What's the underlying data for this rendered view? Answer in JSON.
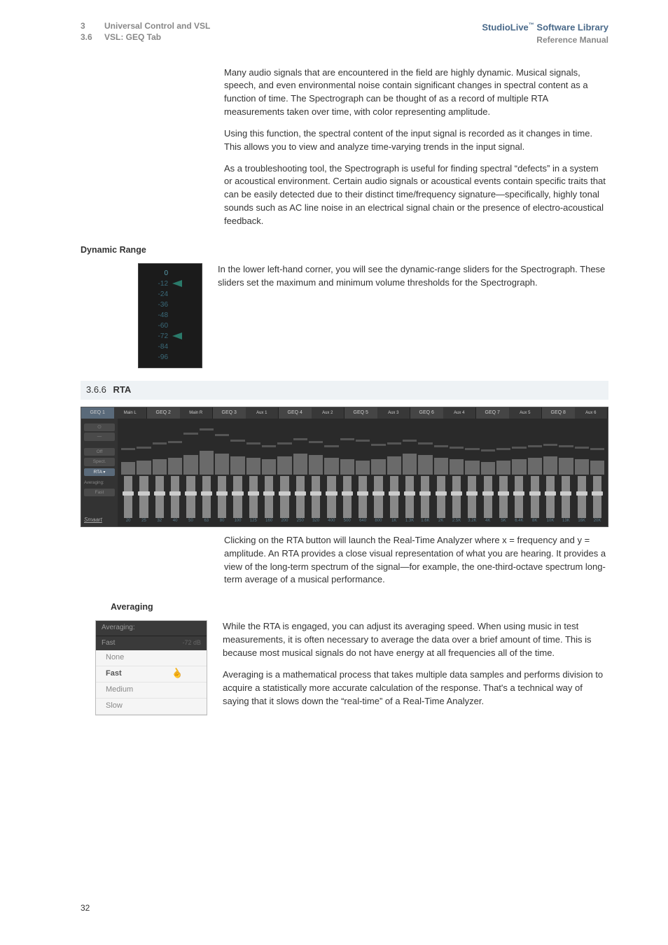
{
  "header": {
    "chapNum": "3",
    "chapTitle": "Universal Control and VSL",
    "secNum": "3.6",
    "secTitle": "VSL: GEQ Tab",
    "right1a": "StudioLive",
    "right1b": " Software Library",
    "right2": "Reference Manual"
  },
  "p1": "Many audio signals that are encountered in the field are highly dynamic. Musical signals, speech, and even environmental noise contain significant changes in spectral content as a function of time. The Spectrograph can be thought of as a record of multiple RTA measurements taken over time, with color representing amplitude.",
  "p2": "Using this function, the spectral content of the input signal is recorded as it changes in time. This allows you to view and analyze time-varying trends in the input signal.",
  "p3": "As a troubleshooting tool, the Spectrograph is useful for finding spectral “defects” in a system or acoustical environment. Certain audio signals or acoustical events contain specific traits that can be easily detected due to their distinct time/frequency signature—specifically, highly tonal sounds such as AC line noise in an electrical signal chain or the presence of electro-acoustical feedback.",
  "dynRange": {
    "label": "Dynamic Range",
    "scale": [
      "0",
      "-12",
      "-24",
      "-36",
      "-48",
      "-60",
      "-72",
      "-84",
      "-96"
    ],
    "sliderTopIdx": 1,
    "sliderBotIdx": 6,
    "text": "In the lower left-hand corner, you will see the dynamic-range sliders for the Spectrograph. These sliders set the maximum and minimum volume thresholds for the Spectrograph."
  },
  "rtaSection": {
    "num": "3.6.6",
    "title": "RTA"
  },
  "rta": {
    "tabs": [
      {
        "a": "GEQ 1",
        "b": "Main L",
        "active": true
      },
      {
        "a": "GEQ 2",
        "b": "Main R"
      },
      {
        "a": "GEQ 3",
        "b": "Aux 1"
      },
      {
        "a": "GEQ 4",
        "b": "Aux 2"
      },
      {
        "a": "GEQ 5",
        "b": "Aux 3"
      },
      {
        "a": "GEQ 6",
        "b": "Aux 4"
      },
      {
        "a": "GEQ 7",
        "b": "Aux 5"
      },
      {
        "a": "GEQ 8",
        "b": "Aux 6"
      }
    ],
    "side": {
      "power": "⏻",
      "link": "―",
      "off": "Off",
      "spect": "Spect.",
      "rta": "RTA",
      "avgLbl": "Averaging:",
      "fast": "Fast",
      "logo": "Smaart"
    },
    "dbLabels": [
      "+6 dB",
      "+2 dB",
      "-18 dB",
      "-34 dB",
      "",
      "-66 dB",
      "",
      "-72 dB"
    ],
    "bars": [
      18,
      20,
      22,
      24,
      28,
      34,
      30,
      26,
      24,
      22,
      26,
      30,
      28,
      24,
      22,
      20,
      22,
      26,
      30,
      28,
      24,
      22,
      20,
      18,
      20,
      22,
      24,
      26,
      24,
      22,
      20
    ],
    "peaks": [
      28,
      30,
      36,
      38,
      50,
      56,
      48,
      40,
      36,
      32,
      36,
      42,
      38,
      32,
      42,
      40,
      34,
      36,
      40,
      36,
      32,
      30,
      28,
      26,
      28,
      30,
      32,
      34,
      32,
      30,
      28
    ],
    "freq": [
      "20",
      "25",
      "32",
      "40",
      "50",
      "63",
      "80",
      "100",
      "125",
      "160",
      "200",
      "250",
      "320",
      "400",
      "500",
      "640",
      "800",
      "1K",
      "1.3K",
      "1.6K",
      "2K",
      "2.5K",
      "3.2K",
      "4K",
      "5K",
      "6.4K",
      "8K",
      "10K",
      "13K",
      "16K",
      "20K"
    ]
  },
  "rtaText": "Clicking on the RTA button will launch the Real-Time Analyzer where x = frequency and y = amplitude. An RTA provides a close visual representation of what you are hearing. It provides a view of the long-term spectrum of the signal—for example, the one-third-octave spectrum long-term average of a musical performance.",
  "averaging": {
    "label": "Averaging",
    "headerA": "Averaging:",
    "headerB": "Fast",
    "headerVal": "-72 dB",
    "options": [
      "None",
      "Fast",
      "Medium",
      "Slow"
    ],
    "selected": "Fast",
    "p1": "While the RTA is engaged, you can adjust its averaging speed. When using music in test measurements, it is often necessary to average the data over a brief amount of time. This is because most musical signals do not have energy at all frequencies all of the time.",
    "p2": "Averaging is a mathematical process that takes multiple data samples and performs division to acquire a statistically more accurate calculation of the response. That's a technical way of saying that it slows down the “real-time” of a Real-Time Analyzer."
  },
  "pageNum": "32"
}
